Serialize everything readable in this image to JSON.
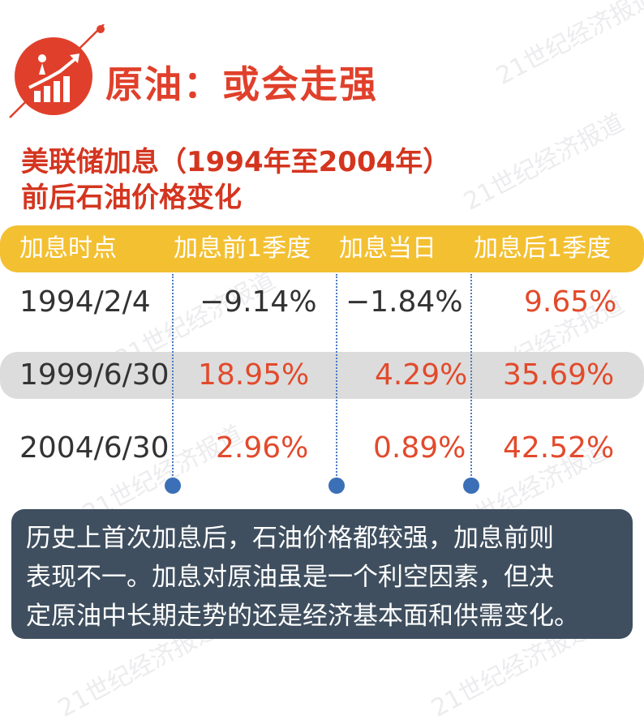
{
  "title": "原油：或会走强",
  "subtitle_line1": "美联储加息（1994年至2004年）",
  "subtitle_line2": "前后石油价格变化",
  "watermark": "21世纪经济报道",
  "colors": {
    "accent_red": "#e0402b",
    "header_yellow": "#f3c032",
    "negative_text": "#333333",
    "positive_text": "#e24a2c",
    "note_bg": "#3f4f5f",
    "divider_blue": "#3b6fb6"
  },
  "icons": [
    "runner-rising-chart-logo-icon"
  ],
  "chart_data": {
    "type": "table",
    "columns": [
      "加息时点",
      "加息前1季度",
      "加息当日",
      "加息后1季度"
    ],
    "rows": [
      {
        "date": "1994/2/4",
        "before": "−9.14%",
        "day": "−1.84%",
        "after": "9.65%"
      },
      {
        "date": "1999/6/30",
        "before": "18.95%",
        "day": "4.29%",
        "after": "35.69%"
      },
      {
        "date": "2004/6/30",
        "before": "2.96%",
        "day": "0.89%",
        "after": "42.52%"
      }
    ],
    "values": {
      "before": [
        -9.14,
        18.95,
        2.96
      ],
      "day": [
        -1.84,
        4.29,
        0.89
      ],
      "after": [
        9.65,
        35.69,
        42.52
      ]
    }
  },
  "note_line1": "历史上首次加息后，石油价格都较强，加息前则",
  "note_line2": "表现不一。加息对原油虽是一个利空因素，但决",
  "note_line3": "定原油中长期走势的还是经济基本面和供需变化。"
}
